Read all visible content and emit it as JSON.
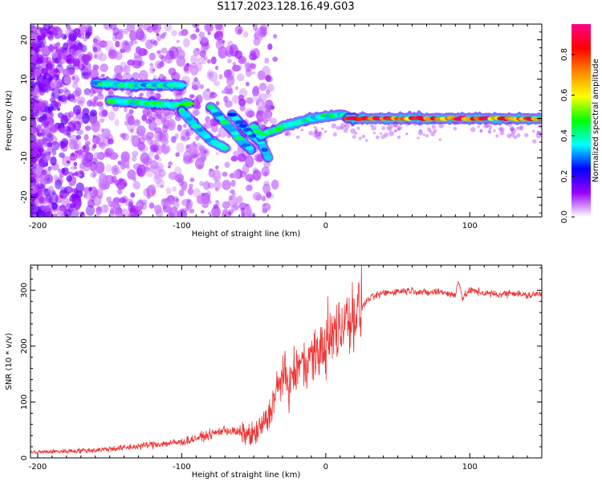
{
  "title": "S117.2023.128.16.49.G03",
  "chart_data": [
    {
      "type": "heatmap",
      "xlabel": "Height of straight line (km)",
      "ylabel": "Frequency (Hz)",
      "xlim": [
        -205,
        150
      ],
      "ylim": [
        -25,
        24
      ],
      "xticks": [
        "-200",
        "-100",
        "0",
        "100"
      ],
      "yticks": [
        "20",
        "10",
        "0",
        "-10",
        "-20"
      ],
      "colorbar": {
        "label": "Normalized spectral amplitude",
        "range": [
          0,
          0.95
        ],
        "ticks": [
          "0.0",
          "0.2",
          "0.4",
          "0.6",
          "0.8"
        ],
        "colormap": [
          "#ffffff",
          "#9900ff",
          "#0000ff",
          "#00ffff",
          "#00ff00",
          "#ffff00",
          "#ff8800",
          "#ff0000",
          "#ff0088"
        ]
      },
      "ridges": [
        {
          "x": [
            -160,
            -140,
            -120,
            -100
          ],
          "y": [
            9,
            8.5,
            8.5,
            8.5
          ],
          "amplitude": 0.4
        },
        {
          "x": [
            -150,
            -130,
            -110,
            -100,
            -95
          ],
          "y": [
            4.5,
            4,
            3.5,
            3.5,
            4
          ],
          "amplitude": 0.45
        },
        {
          "x": [
            -100,
            -90,
            -80,
            -70
          ],
          "y": [
            2,
            -2,
            -5.5,
            -7.5
          ],
          "amplitude": 0.4
        },
        {
          "x": [
            -80,
            -70,
            -60,
            -52
          ],
          "y": [
            3,
            -1,
            -5,
            -8
          ],
          "amplitude": 0.4
        },
        {
          "x": [
            -65,
            -55,
            -45,
            -40
          ],
          "y": [
            1,
            -3,
            -6,
            -10
          ],
          "amplitude": 0.35
        },
        {
          "x": [
            -50,
            -45,
            -40,
            -35,
            -30,
            -20,
            -10,
            0,
            10,
            20
          ],
          "y": [
            -2,
            -4.5,
            -3.5,
            -3,
            -2,
            -1,
            0,
            0.5,
            1,
            0
          ],
          "amplitude": 0.45
        },
        {
          "x": [
            15,
            40,
            70,
            100,
            130,
            150
          ],
          "y": [
            0,
            0,
            0,
            0,
            0,
            0
          ],
          "amplitude": 0.85
        }
      ]
    },
    {
      "type": "line",
      "xlabel": "Height of straight line (km)",
      "ylabel": "SNR (10 * v/v)",
      "xlim": [
        -205,
        150
      ],
      "ylim": [
        0,
        345
      ],
      "xticks": [
        "-200",
        "-100",
        "0",
        "100"
      ],
      "yticks": [
        "300",
        "200",
        "100",
        "0"
      ],
      "color": "#ee3333",
      "x": [
        -205,
        -180,
        -160,
        -140,
        -120,
        -100,
        -90,
        -80,
        -70,
        -60,
        -50,
        -45,
        -40,
        -35,
        -30,
        -25,
        -20,
        -15,
        -10,
        -5,
        0,
        5,
        10,
        15,
        20,
        25,
        30,
        40,
        50,
        60,
        70,
        80,
        90,
        92,
        95,
        100,
        110,
        120,
        130,
        140,
        150
      ],
      "y": [
        10,
        12,
        14,
        18,
        24,
        28,
        35,
        42,
        50,
        45,
        40,
        55,
        70,
        110,
        150,
        130,
        160,
        170,
        180,
        190,
        200,
        220,
        235,
        245,
        255,
        270,
        285,
        295,
        298,
        300,
        295,
        298,
        290,
        320,
        285,
        300,
        295,
        292,
        296,
        290,
        295
      ]
    }
  ]
}
